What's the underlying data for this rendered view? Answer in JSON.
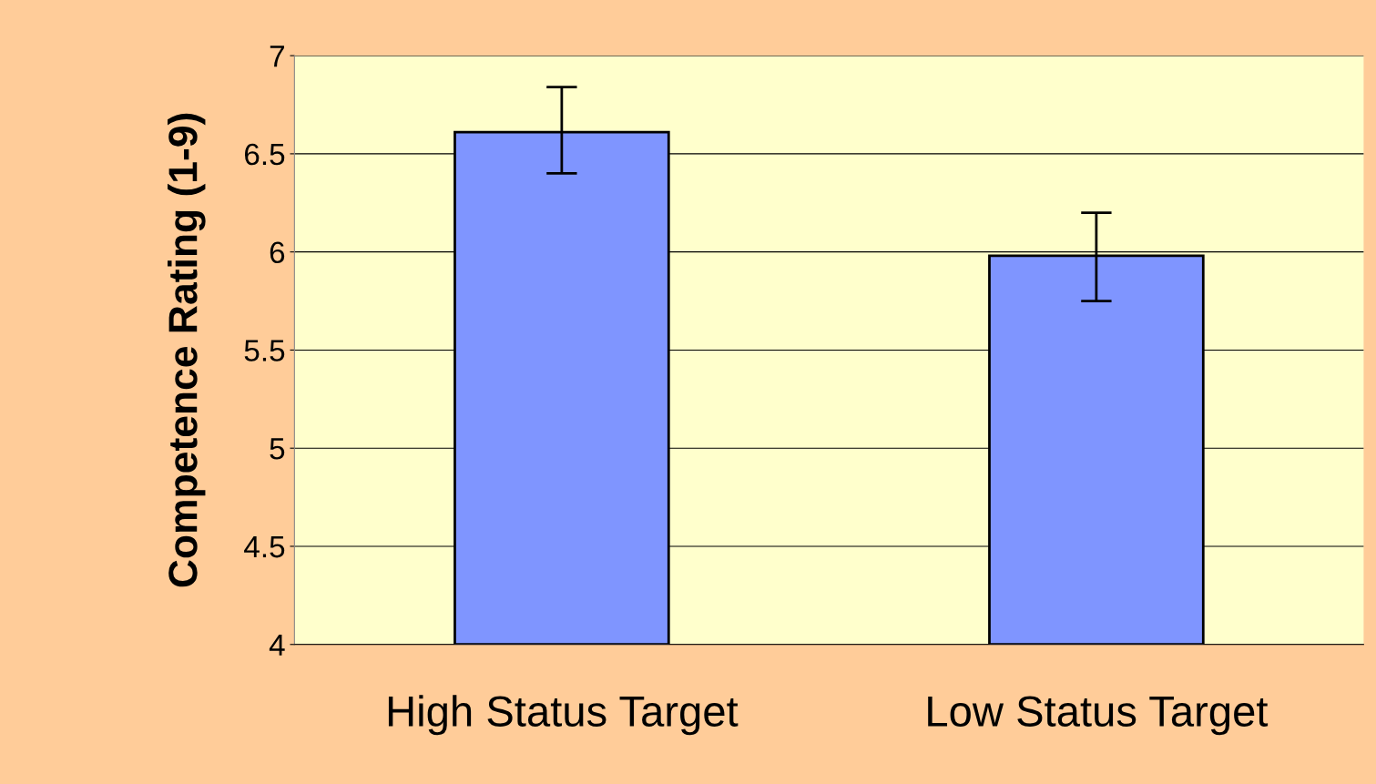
{
  "chart_data": {
    "type": "bar",
    "ylabel": "Competence Rating (1-9)",
    "categories": [
      "High Status Target",
      "Low Status Target"
    ],
    "values": [
      6.61,
      5.98
    ],
    "errors": [
      [
        6.4,
        6.84
      ],
      [
        5.75,
        6.2
      ]
    ],
    "color": "#7f95ff",
    "ylim": [
      4,
      7
    ],
    "yticks": [
      4,
      4.5,
      5,
      5.5,
      6,
      6.5,
      7
    ],
    "grid": "y",
    "legend": false
  }
}
